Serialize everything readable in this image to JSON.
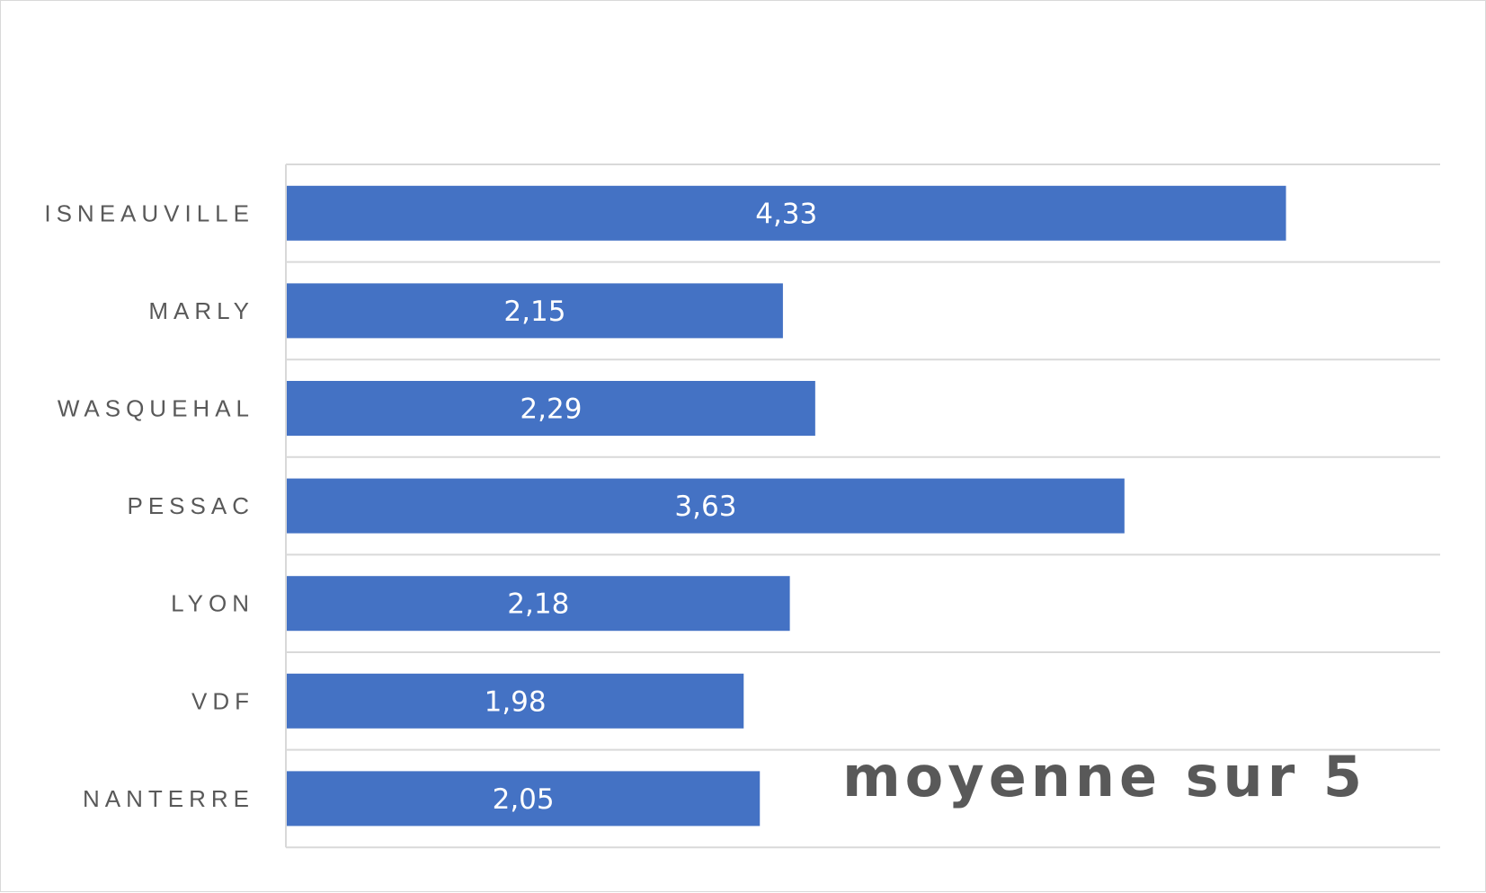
{
  "chart_data": {
    "type": "bar",
    "orientation": "horizontal",
    "categories": [
      "ISNEAUVILLE",
      "MARLY",
      "WASQUEHAL",
      "PESSAC",
      "LYON",
      "VDF",
      "NANTERRE"
    ],
    "values": [
      4.33,
      2.15,
      2.29,
      3.63,
      2.18,
      1.98,
      2.05
    ],
    "data_labels": [
      "4,33",
      "2,15",
      "2,29",
      "3,63",
      "2,18",
      "1,98",
      "2,05"
    ],
    "annotation": "moyenne sur 5",
    "title": "",
    "xlabel": "",
    "ylabel": "",
    "xlim": [
      0,
      5
    ],
    "grid": true,
    "bar_color": "#4472C4",
    "grid_color": "#d9d9d9",
    "label_color": "#595959"
  }
}
